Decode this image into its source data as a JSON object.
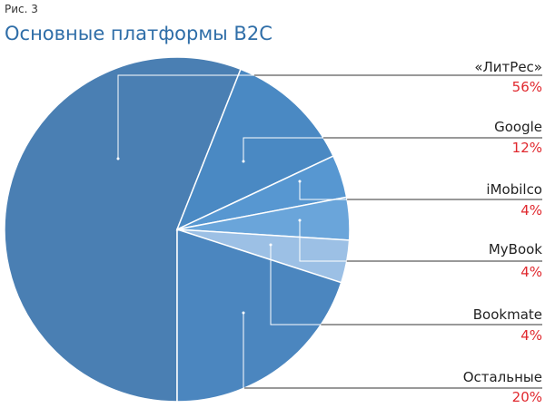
{
  "chart_data": {
    "type": "pie",
    "subtitle": "Рис. 3",
    "title": "Основные платформы B2C",
    "categories": [
      "«ЛитРес»",
      "Google",
      "iMobilco",
      "MyBook",
      "Bookmate",
      "Остальные"
    ],
    "values": [
      56,
      12,
      4,
      4,
      4,
      20
    ],
    "value_labels": [
      "56%",
      "12%",
      "4%",
      "4%",
      "4%",
      "20%"
    ],
    "colors": [
      "#4a7fb3",
      "#4a89c3",
      "#5797d1",
      "#6aa5da",
      "#9cc0e5",
      "#4b86bf"
    ],
    "label_color": "#e0282e"
  }
}
